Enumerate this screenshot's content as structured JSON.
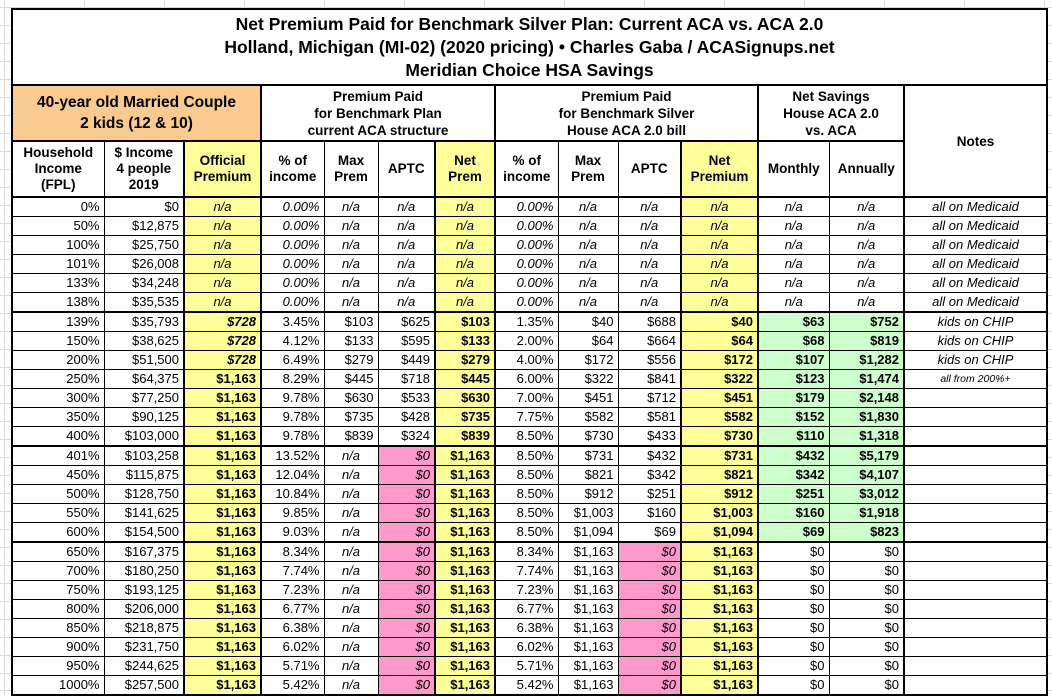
{
  "title": {
    "line1": "Net Premium Paid for Benchmark Silver Plan: Current ACA vs. ACA 2.0",
    "line2": "Holland, Michigan (MI-02) (2020 pricing) • Charles Gaba / ACASignups.net",
    "line3": "Meridian Choice HSA Savings"
  },
  "header": {
    "demographic": "40-year old Married Couple\n2 kids (12 & 10)",
    "group_current_aca": "Premium Paid\nfor Benchmark Plan\ncurrent ACA structure",
    "group_house_aca2": "Premium Paid\nfor Benchmark Silver\nHouse ACA 2.0 bill",
    "group_net_savings": "Net Savings\nHouse ACA 2.0\nvs. ACA",
    "notes": "Notes",
    "columns": {
      "fpl": "Household\nIncome\n(FPL)",
      "income": "$ Income\n4 people\n2019",
      "official": "Official\nPremium",
      "aca_pct": "% of\nincome",
      "aca_max": "Max\nPrem",
      "aca_aptc": "APTC",
      "aca_net": "Net\nPrem",
      "h_pct": "% of\nincome",
      "h_max": "Max\nPrem",
      "h_aptc": "APTC",
      "h_net": "Net\nPremium",
      "monthly": "Monthly",
      "annually": "Annually"
    }
  },
  "colors": {
    "yellow_highlight": "#FFFF99",
    "pink_highlight": "#FF99CC",
    "green_highlight": "#CCFFCC",
    "orange_header": "#FACB8F"
  },
  "chart_data": {
    "type": "table",
    "columns": [
      "fpl",
      "income",
      "official",
      "aca_pct",
      "aca_max",
      "aca_aptc",
      "aca_net",
      "h_pct",
      "h_max",
      "h_aptc",
      "h_net",
      "monthly",
      "annually",
      "note"
    ],
    "rows": [
      [
        "0%",
        "$0",
        "n/a",
        "0.00%",
        "n/a",
        "n/a",
        "n/a",
        "0.00%",
        "n/a",
        "n/a",
        "n/a",
        "n/a",
        "n/a",
        "all on Medicaid"
      ],
      [
        "50%",
        "$12,875",
        "n/a",
        "0.00%",
        "n/a",
        "n/a",
        "n/a",
        "0.00%",
        "n/a",
        "n/a",
        "n/a",
        "n/a",
        "n/a",
        "all on Medicaid"
      ],
      [
        "100%",
        "$25,750",
        "n/a",
        "0.00%",
        "n/a",
        "n/a",
        "n/a",
        "0.00%",
        "n/a",
        "n/a",
        "n/a",
        "n/a",
        "n/a",
        "all on Medicaid"
      ],
      [
        "101%",
        "$26,008",
        "n/a",
        "0.00%",
        "n/a",
        "n/a",
        "n/a",
        "0.00%",
        "n/a",
        "n/a",
        "n/a",
        "n/a",
        "n/a",
        "all on Medicaid"
      ],
      [
        "133%",
        "$34,248",
        "n/a",
        "0.00%",
        "n/a",
        "n/a",
        "n/a",
        "0.00%",
        "n/a",
        "n/a",
        "n/a",
        "n/a",
        "n/a",
        "all on Medicaid"
      ],
      [
        "138%",
        "$35,535",
        "n/a",
        "0.00%",
        "n/a",
        "n/a",
        "n/a",
        "0.00%",
        "n/a",
        "n/a",
        "n/a",
        "n/a",
        "n/a",
        "all on Medicaid"
      ],
      [
        "139%",
        "$35,793",
        "$728",
        "3.45%",
        "$103",
        "$625",
        "$103",
        "1.35%",
        "$40",
        "$688",
        "$40",
        "$63",
        "$752",
        "kids on CHIP"
      ],
      [
        "150%",
        "$38,625",
        "$728",
        "4.12%",
        "$133",
        "$595",
        "$133",
        "2.00%",
        "$64",
        "$664",
        "$64",
        "$68",
        "$819",
        "kids on CHIP"
      ],
      [
        "200%",
        "$51,500",
        "$728",
        "6.49%",
        "$279",
        "$449",
        "$279",
        "4.00%",
        "$172",
        "$556",
        "$172",
        "$107",
        "$1,282",
        "kids on CHIP"
      ],
      [
        "250%",
        "$64,375",
        "$1,163",
        "8.29%",
        "$445",
        "$718",
        "$445",
        "6.00%",
        "$322",
        "$841",
        "$322",
        "$123",
        "$1,474",
        "all from 200%+"
      ],
      [
        "300%",
        "$77,250",
        "$1,163",
        "9.78%",
        "$630",
        "$533",
        "$630",
        "7.00%",
        "$451",
        "$712",
        "$451",
        "$179",
        "$2,148",
        ""
      ],
      [
        "350%",
        "$90,125",
        "$1,163",
        "9.78%",
        "$735",
        "$428",
        "$735",
        "7.75%",
        "$582",
        "$581",
        "$582",
        "$152",
        "$1,830",
        ""
      ],
      [
        "400%",
        "$103,000",
        "$1,163",
        "9.78%",
        "$839",
        "$324",
        "$839",
        "8.50%",
        "$730",
        "$433",
        "$730",
        "$110",
        "$1,318",
        ""
      ],
      [
        "401%",
        "$103,258",
        "$1,163",
        "13.52%",
        "n/a",
        "$0",
        "$1,163",
        "8.50%",
        "$731",
        "$432",
        "$731",
        "$432",
        "$5,179",
        ""
      ],
      [
        "450%",
        "$115,875",
        "$1,163",
        "12.04%",
        "n/a",
        "$0",
        "$1,163",
        "8.50%",
        "$821",
        "$342",
        "$821",
        "$342",
        "$4,107",
        ""
      ],
      [
        "500%",
        "$128,750",
        "$1,163",
        "10.84%",
        "n/a",
        "$0",
        "$1,163",
        "8.50%",
        "$912",
        "$251",
        "$912",
        "$251",
        "$3,012",
        ""
      ],
      [
        "550%",
        "$141,625",
        "$1,163",
        "9.85%",
        "n/a",
        "$0",
        "$1,163",
        "8.50%",
        "$1,003",
        "$160",
        "$1,003",
        "$160",
        "$1,918",
        ""
      ],
      [
        "600%",
        "$154,500",
        "$1,163",
        "9.03%",
        "n/a",
        "$0",
        "$1,163",
        "8.50%",
        "$1,094",
        "$69",
        "$1,094",
        "$69",
        "$823",
        ""
      ],
      [
        "650%",
        "$167,375",
        "$1,163",
        "8.34%",
        "n/a",
        "$0",
        "$1,163",
        "8.34%",
        "$1,163",
        "$0",
        "$1,163",
        "$0",
        "$0",
        ""
      ],
      [
        "700%",
        "$180,250",
        "$1,163",
        "7.74%",
        "n/a",
        "$0",
        "$1,163",
        "7.74%",
        "$1,163",
        "$0",
        "$1,163",
        "$0",
        "$0",
        ""
      ],
      [
        "750%",
        "$193,125",
        "$1,163",
        "7.23%",
        "n/a",
        "$0",
        "$1,163",
        "7.23%",
        "$1,163",
        "$0",
        "$1,163",
        "$0",
        "$0",
        ""
      ],
      [
        "800%",
        "$206,000",
        "$1,163",
        "6.77%",
        "n/a",
        "$0",
        "$1,163",
        "6.77%",
        "$1,163",
        "$0",
        "$1,163",
        "$0",
        "$0",
        ""
      ],
      [
        "850%",
        "$218,875",
        "$1,163",
        "6.38%",
        "n/a",
        "$0",
        "$1,163",
        "6.38%",
        "$1,163",
        "$0",
        "$1,163",
        "$0",
        "$0",
        ""
      ],
      [
        "900%",
        "$231,750",
        "$1,163",
        "6.02%",
        "n/a",
        "$0",
        "$1,163",
        "6.02%",
        "$1,163",
        "$0",
        "$1,163",
        "$0",
        "$0",
        ""
      ],
      [
        "950%",
        "$244,625",
        "$1,163",
        "5.71%",
        "n/a",
        "$0",
        "$1,163",
        "5.71%",
        "$1,163",
        "$0",
        "$1,163",
        "$0",
        "$0",
        ""
      ],
      [
        "1000%",
        "$257,500",
        "$1,163",
        "5.42%",
        "n/a",
        "$0",
        "$1,163",
        "5.42%",
        "$1,163",
        "$0",
        "$1,163",
        "$0",
        "$0",
        ""
      ]
    ]
  }
}
